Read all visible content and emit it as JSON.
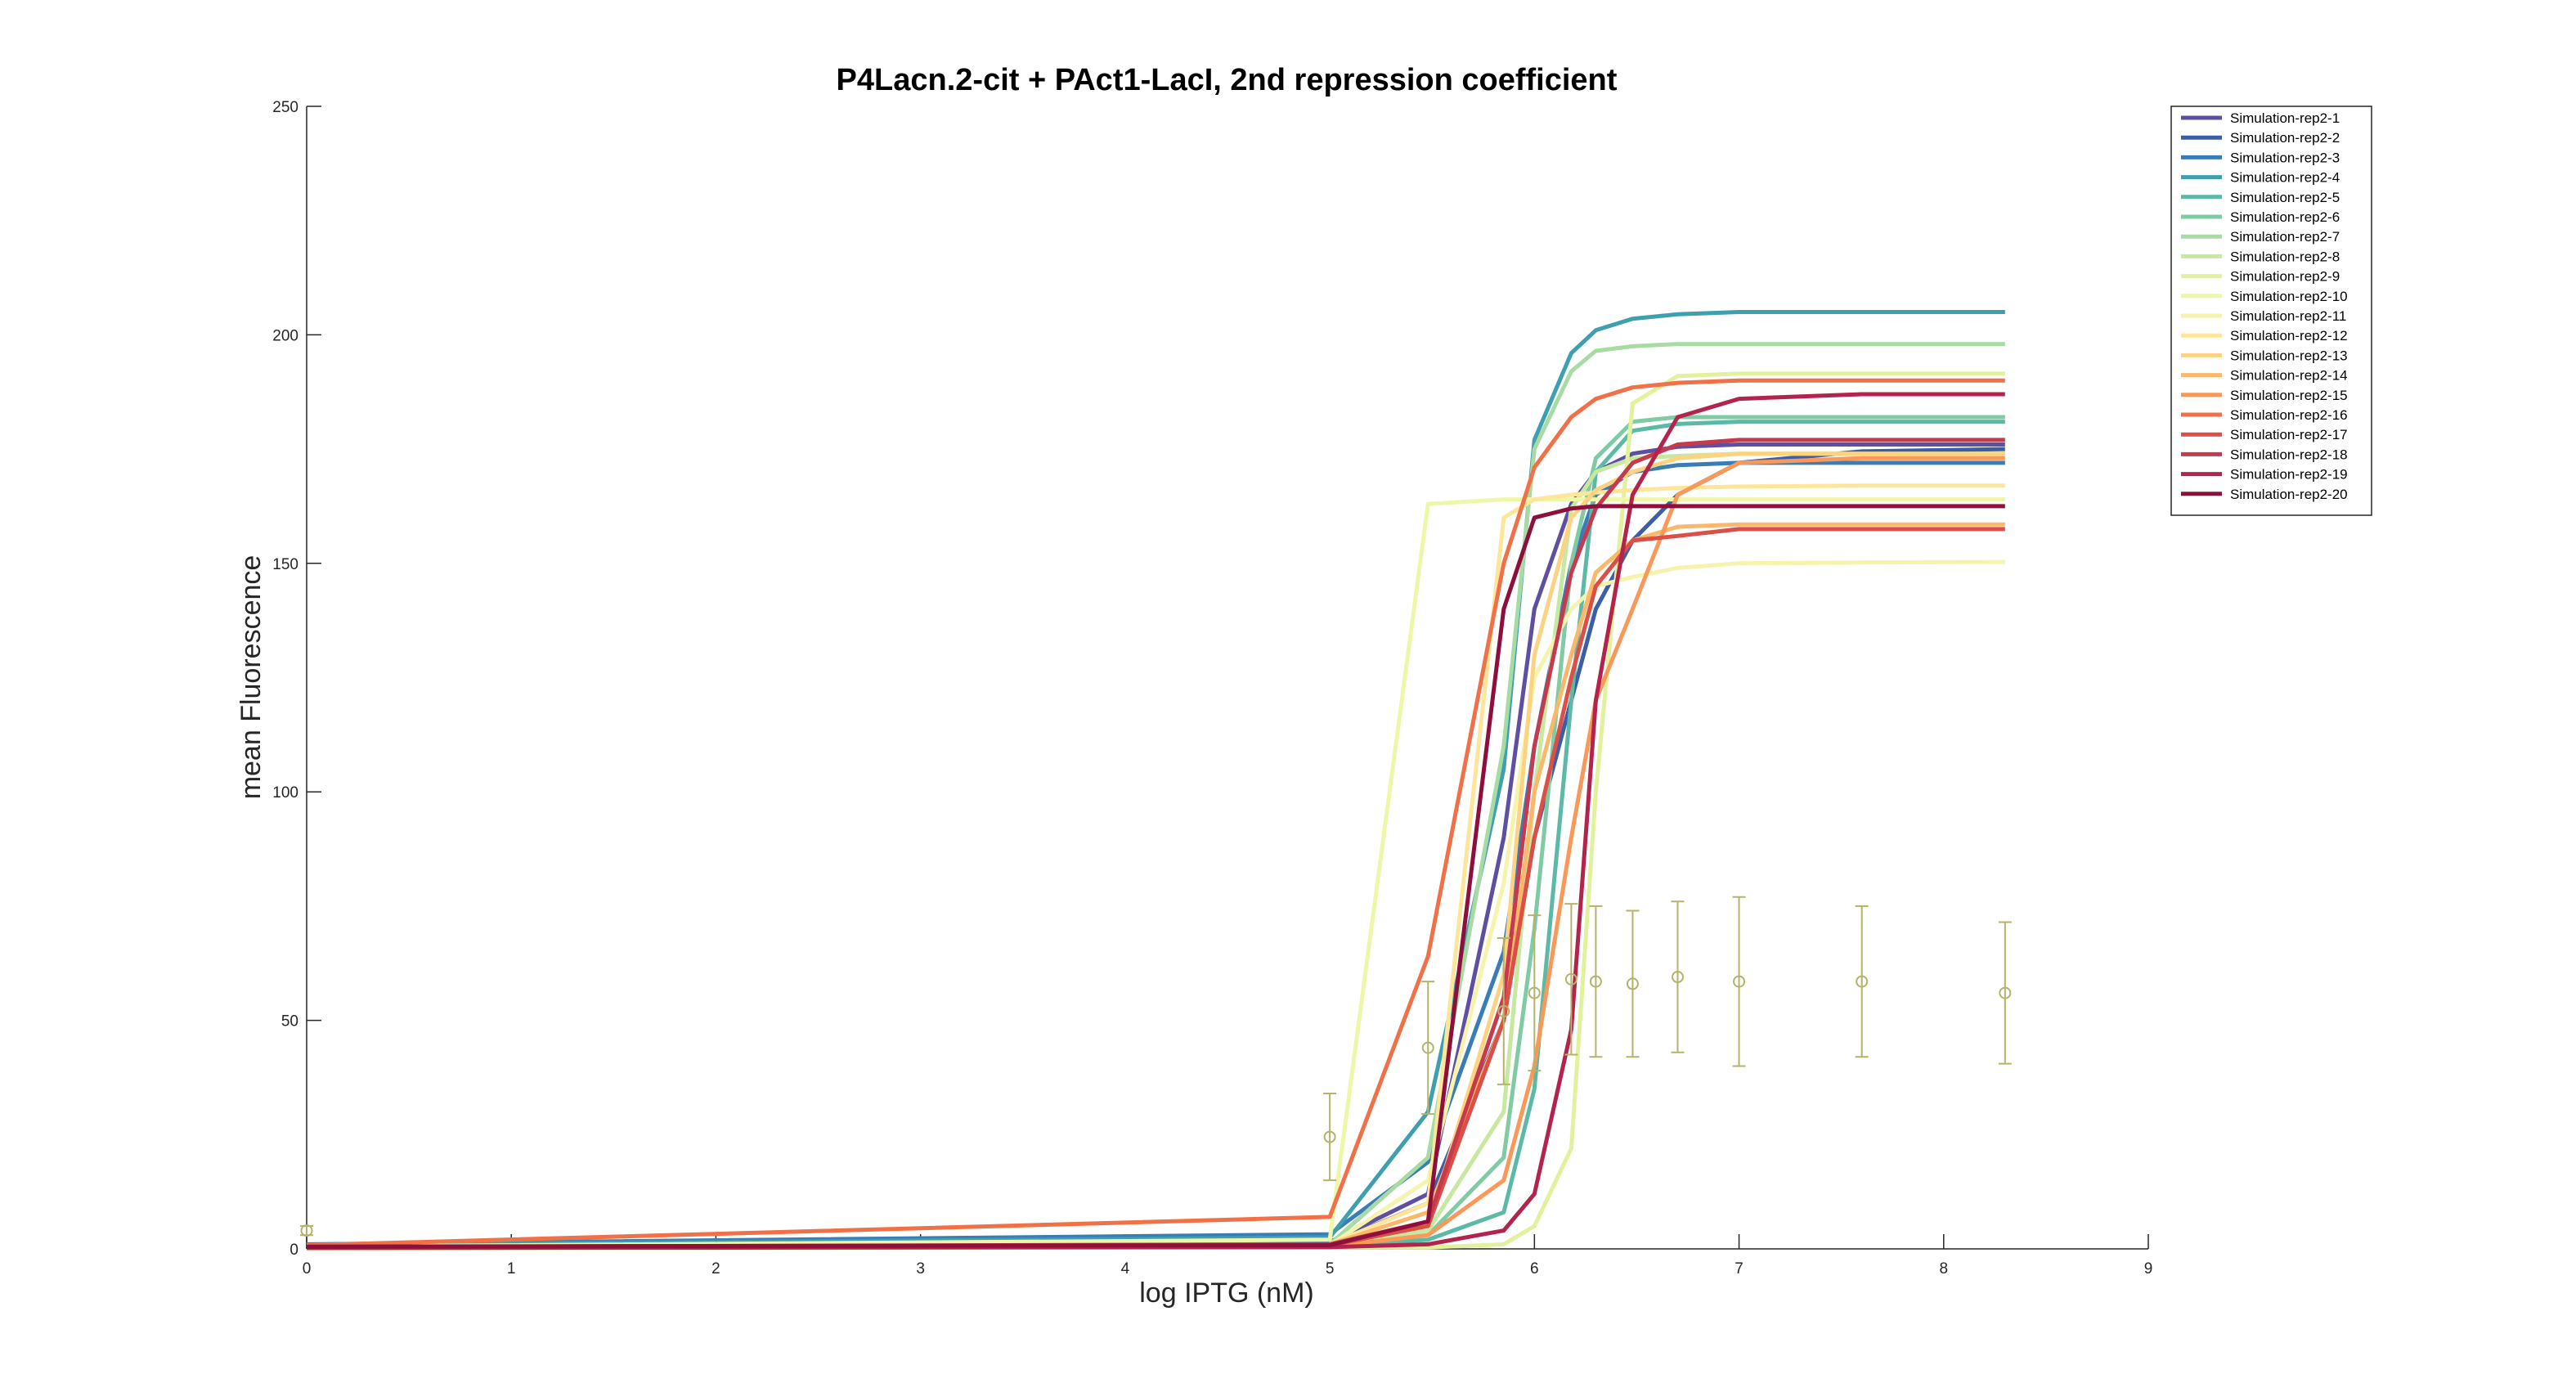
{
  "chart_data": {
    "type": "line",
    "title": "P4Lacn.2-cit + PAct1-LacI, 2nd repression coefficient",
    "xlabel": "log IPTG (nM)",
    "ylabel": "mean Fluorescence",
    "xlim": [
      0,
      9
    ],
    "ylim": [
      0,
      250
    ],
    "xticks": [
      "0",
      "1",
      "2",
      "3",
      "4",
      "5",
      "6",
      "7",
      "8",
      "9"
    ],
    "yticks": [
      "0",
      "50",
      "100",
      "150",
      "200",
      "250"
    ],
    "grid": false,
    "legend_position": "top-right",
    "x": [
      0,
      5,
      5.48,
      5.85,
      6,
      6.18,
      6.3,
      6.48,
      6.7,
      7,
      7.6,
      8.3
    ],
    "series": [
      {
        "name": "Simulation-rep2-1",
        "color": "#5e4fa2",
        "values": [
          0.7,
          1.5,
          12,
          90,
          140,
          163,
          170,
          174,
          175.5,
          176,
          176,
          176
        ]
      },
      {
        "name": "Simulation-rep2-2",
        "color": "#3b5ea8",
        "values": [
          0.5,
          1.2,
          10,
          50,
          90,
          120,
          140,
          155,
          165,
          172,
          174.5,
          175
        ]
      },
      {
        "name": "Simulation-rep2-3",
        "color": "#3a7cb8",
        "values": [
          1.0,
          3.2,
          19,
          65,
          110,
          150,
          165,
          170,
          171.5,
          172,
          172,
          172
        ]
      },
      {
        "name": "Simulation-rep2-4",
        "color": "#3d9fb0",
        "values": [
          0.8,
          2.5,
          30,
          105,
          177,
          196,
          201,
          203.5,
          204.5,
          205,
          205,
          205
        ]
      },
      {
        "name": "Simulation-rep2-5",
        "color": "#5bb9a5",
        "values": [
          0.2,
          0.5,
          2,
          8,
          35,
          120,
          170,
          179,
          180.5,
          181,
          181,
          181
        ]
      },
      {
        "name": "Simulation-rep2-6",
        "color": "#7fcba4",
        "values": [
          0.3,
          0.6,
          3,
          20,
          70,
          150,
          173,
          181,
          182,
          182,
          182,
          182
        ]
      },
      {
        "name": "Simulation-rep2-7",
        "color": "#a8dba4",
        "values": [
          0.4,
          1.0,
          20,
          110,
          175,
          192,
          196.5,
          197.5,
          198,
          198,
          198,
          198
        ]
      },
      {
        "name": "Simulation-rep2-8",
        "color": "#c6e89f",
        "values": [
          0.2,
          0.5,
          4,
          30,
          100,
          162,
          170,
          173,
          173.5,
          174,
          174,
          174
        ]
      },
      {
        "name": "Simulation-rep2-9",
        "color": "#e2f29c",
        "values": [
          0.1,
          0.3,
          0.3,
          1,
          5,
          22,
          100,
          185,
          191,
          191.5,
          191.5,
          191.5
        ]
      },
      {
        "name": "Simulation-rep2-10",
        "color": "#eef7a8",
        "values": [
          0.5,
          2.0,
          163,
          164,
          164,
          164,
          164,
          164,
          164,
          164,
          164,
          164
        ]
      },
      {
        "name": "Simulation-rep2-11",
        "color": "#f6f3ad",
        "values": [
          0.3,
          0.8,
          15,
          80,
          125,
          140,
          145,
          147,
          149,
          150,
          150.2,
          150.3
        ]
      },
      {
        "name": "Simulation-rep2-12",
        "color": "#fde69a",
        "values": [
          0.4,
          1.0,
          10,
          160,
          164,
          165,
          165.5,
          166,
          166.5,
          166.8,
          167,
          167
        ]
      },
      {
        "name": "Simulation-rep2-13",
        "color": "#fdd382",
        "values": [
          0.3,
          0.8,
          5,
          60,
          130,
          160,
          166,
          170,
          173,
          174,
          174,
          174
        ]
      },
      {
        "name": "Simulation-rep2-14",
        "color": "#fcb86a",
        "values": [
          0.3,
          1.0,
          8,
          50,
          100,
          130,
          148,
          155,
          158,
          158.5,
          158.5,
          158.5
        ]
      },
      {
        "name": "Simulation-rep2-15",
        "color": "#f99858",
        "values": [
          0.2,
          0.5,
          3,
          15,
          40,
          90,
          120,
          140,
          165,
          172,
          173,
          173
        ]
      },
      {
        "name": "Simulation-rep2-16",
        "color": "#f07148",
        "values": [
          0.8,
          7.0,
          64,
          150,
          171,
          182,
          186,
          188.5,
          189.5,
          190,
          190,
          190
        ]
      },
      {
        "name": "Simulation-rep2-17",
        "color": "#dc4e46",
        "values": [
          0.3,
          0.8,
          5,
          50,
          90,
          125,
          145,
          155,
          156,
          157.5,
          157.5,
          157.5
        ]
      },
      {
        "name": "Simulation-rep2-18",
        "color": "#c53a4d",
        "values": [
          0.4,
          1.0,
          6,
          55,
          110,
          148,
          162,
          172,
          176,
          177,
          177,
          177
        ]
      },
      {
        "name": "Simulation-rep2-19",
        "color": "#b3244d",
        "values": [
          0.2,
          0.4,
          1,
          4,
          12,
          48,
          120,
          165,
          182,
          186,
          187,
          187
        ]
      },
      {
        "name": "Simulation-rep2-20",
        "color": "#8d0f3b",
        "values": [
          0.5,
          0.8,
          6,
          140,
          160,
          162,
          162.5,
          162.5,
          162.5,
          162.5,
          162.5,
          162.5
        ]
      }
    ],
    "experimental": {
      "color": "#b5b36a",
      "x": [
        0,
        5,
        5.48,
        5.85,
        6,
        6.18,
        6.3,
        6.48,
        6.7,
        7,
        7.6,
        8.3
      ],
      "y": [
        4,
        24.5,
        44,
        52,
        56,
        59,
        58.5,
        58,
        59.5,
        58.5,
        58.5,
        56
      ],
      "yerr": [
        1,
        9.5,
        14.5,
        16,
        17,
        16.5,
        16.5,
        16,
        16.5,
        18.5,
        16.5,
        15.5
      ]
    }
  }
}
